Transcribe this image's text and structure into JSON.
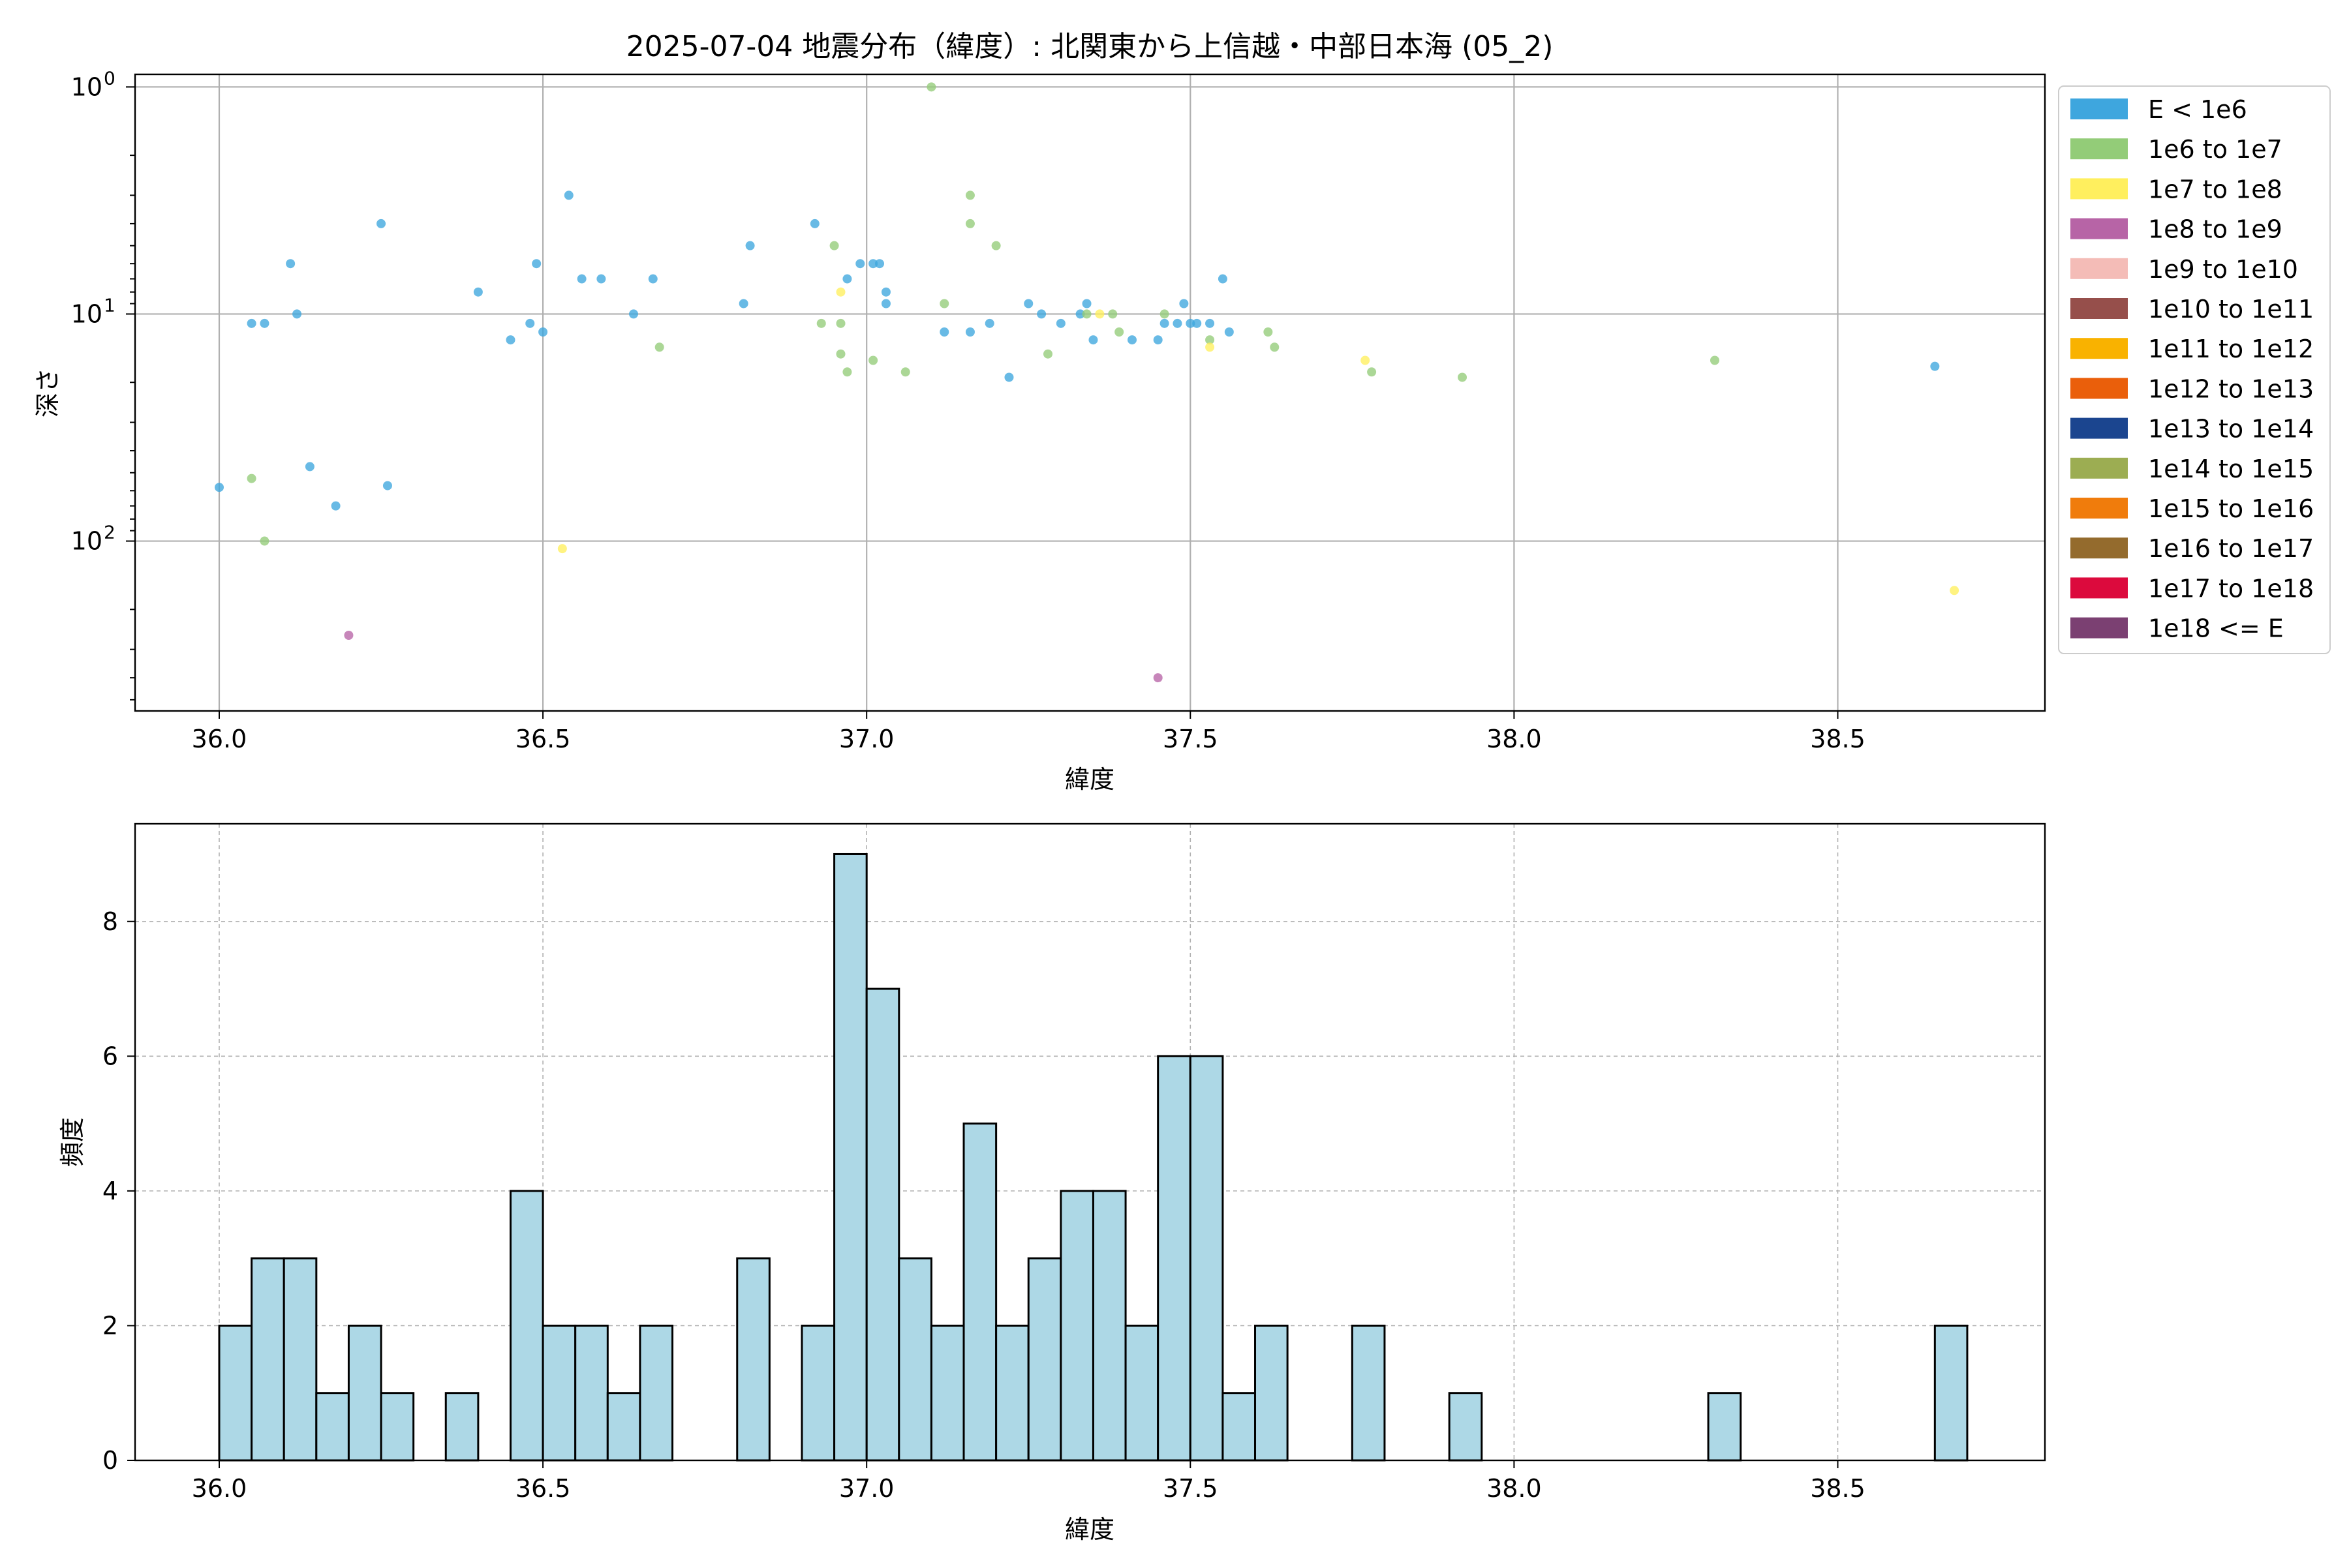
{
  "chart_data": [
    {
      "type": "scatter",
      "title": "2025-07-04 地震分布（緯度）: 北関東から上信越・中部日本海 (05_2)",
      "xlabel": "緯度",
      "ylabel": "深さ",
      "xlim": [
        35.87,
        38.82
      ],
      "ylim": [
        560,
        0.88
      ],
      "yscale": "log",
      "y_inverted": true,
      "grid": true,
      "legend_placement": "outside-right-top",
      "x_ticks": [
        36.0,
        36.5,
        37.0,
        37.5,
        38.0,
        38.5
      ],
      "x_tick_labels": [
        "36.0",
        "36.5",
        "37.0",
        "37.5",
        "38.0",
        "38.5"
      ],
      "y_ticks": [
        1,
        10,
        100
      ],
      "y_tick_labels": [
        {
          "base": "10",
          "exp": "0"
        },
        {
          "base": "10",
          "exp": "1"
        },
        {
          "base": "10",
          "exp": "2"
        }
      ],
      "legend": [
        {
          "label": "E < 1e6",
          "color": "#3ea6de"
        },
        {
          "label": "1e6 to 1e7",
          "color": "#93cc78"
        },
        {
          "label": "1e7 to 1e8",
          "color": "#ffef5e"
        },
        {
          "label": "1e8 to 1e9",
          "color": "#b764a6"
        },
        {
          "label": "1e9 to 1e10",
          "color": "#f4bcb7"
        },
        {
          "label": "1e10 to 1e11",
          "color": "#964f4b"
        },
        {
          "label": "1e11 to 1e12",
          "color": "#f9b200"
        },
        {
          "label": "1e12 to 1e13",
          "color": "#ea5f0b"
        },
        {
          "label": "1e13 to 1e14",
          "color": "#1b458f"
        },
        {
          "label": "1e14 to 1e15",
          "color": "#9cad52"
        },
        {
          "label": "1e15 to 1e16",
          "color": "#f07c0c"
        },
        {
          "label": "1e16 to 1e17",
          "color": "#946b2d"
        },
        {
          "label": "1e17 to 1e18",
          "color": "#dc0a3d"
        },
        {
          "label": "1e18 <= E",
          "color": "#7b4072"
        }
      ],
      "series": [
        {
          "name": "E < 1e6",
          "color": "#3ea6de",
          "points": [
            [
              36.0,
              58
            ],
            [
              36.05,
              11
            ],
            [
              36.07,
              11
            ],
            [
              36.11,
              6
            ],
            [
              36.12,
              10
            ],
            [
              36.14,
              47
            ],
            [
              36.18,
              70
            ],
            [
              36.25,
              4
            ],
            [
              36.26,
              57
            ],
            [
              36.4,
              8
            ],
            [
              36.45,
              13
            ],
            [
              36.48,
              11
            ],
            [
              36.49,
              6
            ],
            [
              36.5,
              12
            ],
            [
              36.54,
              3
            ],
            [
              36.56,
              7
            ],
            [
              36.59,
              7
            ],
            [
              36.64,
              10
            ],
            [
              36.67,
              7
            ],
            [
              36.81,
              9
            ],
            [
              36.82,
              5
            ],
            [
              36.92,
              4
            ],
            [
              36.97,
              7
            ],
            [
              36.99,
              6
            ],
            [
              37.01,
              6
            ],
            [
              37.02,
              6
            ],
            [
              37.03,
              8
            ],
            [
              37.03,
              9
            ],
            [
              37.12,
              12
            ],
            [
              37.16,
              12
            ],
            [
              37.19,
              11
            ],
            [
              37.22,
              19
            ],
            [
              37.25,
              9
            ],
            [
              37.27,
              10
            ],
            [
              37.3,
              11
            ],
            [
              37.33,
              10
            ],
            [
              37.34,
              9
            ],
            [
              37.35,
              13
            ],
            [
              37.41,
              13
            ],
            [
              37.45,
              13
            ],
            [
              37.46,
              11
            ],
            [
              37.48,
              11
            ],
            [
              37.49,
              9
            ],
            [
              37.5,
              11
            ],
            [
              37.51,
              11
            ],
            [
              37.53,
              11
            ],
            [
              37.55,
              7
            ],
            [
              37.56,
              12
            ],
            [
              38.65,
              17
            ]
          ]
        },
        {
          "name": "1e6 to 1e7",
          "color": "#93cc78",
          "points": [
            [
              36.05,
              53
            ],
            [
              36.07,
              100
            ],
            [
              36.68,
              14
            ],
            [
              36.93,
              11
            ],
            [
              36.95,
              5
            ],
            [
              36.96,
              11
            ],
            [
              36.96,
              15
            ],
            [
              36.97,
              18
            ],
            [
              37.01,
              16
            ],
            [
              37.06,
              18
            ],
            [
              37.1,
              1
            ],
            [
              37.12,
              9
            ],
            [
              37.16,
              3
            ],
            [
              37.16,
              4
            ],
            [
              37.2,
              5
            ],
            [
              37.28,
              15
            ],
            [
              37.34,
              10
            ],
            [
              37.38,
              10
            ],
            [
              37.39,
              12
            ],
            [
              37.46,
              10
            ],
            [
              37.53,
              13
            ],
            [
              37.62,
              12
            ],
            [
              37.63,
              14
            ],
            [
              37.78,
              18
            ],
            [
              37.92,
              19
            ],
            [
              38.31,
              16
            ]
          ]
        },
        {
          "name": "1e7 to 1e8",
          "color": "#ffef5e",
          "points": [
            [
              36.53,
              108
            ],
            [
              36.96,
              8
            ],
            [
              37.36,
              10
            ],
            [
              37.53,
              14
            ],
            [
              37.77,
              16
            ],
            [
              38.68,
              165
            ]
          ]
        },
        {
          "name": "1e8 to 1e9",
          "color": "#b764a6",
          "points": [
            [
              36.2,
              260
            ],
            [
              37.45,
              400
            ]
          ]
        }
      ]
    },
    {
      "type": "histogram",
      "xlabel": "緯度",
      "ylabel": "頻度",
      "xlim": [
        35.87,
        38.82
      ],
      "ylim": [
        0,
        9.45
      ],
      "grid": true,
      "x_ticks": [
        36.0,
        36.5,
        37.0,
        37.5,
        38.0,
        38.5
      ],
      "x_tick_labels": [
        "36.0",
        "36.5",
        "37.0",
        "37.5",
        "38.0",
        "38.5"
      ],
      "y_ticks": [
        0,
        2,
        4,
        6,
        8
      ],
      "y_tick_labels": [
        "0",
        "2",
        "4",
        "6",
        "8"
      ],
      "bar_color": "#add8e6",
      "bin_start": 36.0,
      "bin_width": 0.05,
      "counts": [
        2,
        3,
        3,
        1,
        2,
        1,
        0,
        1,
        0,
        4,
        2,
        2,
        1,
        2,
        0,
        0,
        3,
        0,
        2,
        9,
        7,
        3,
        2,
        5,
        2,
        3,
        4,
        4,
        2,
        6,
        6,
        1,
        2,
        0,
        0,
        2,
        0,
        0,
        1,
        0,
        0,
        0,
        0,
        0,
        0,
        0,
        1,
        0,
        0,
        0,
        0,
        0,
        0,
        2
      ]
    }
  ]
}
